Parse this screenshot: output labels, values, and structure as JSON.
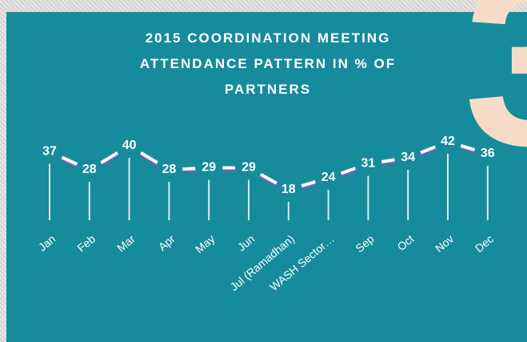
{
  "badge": "3",
  "chart_data": {
    "type": "line",
    "title": [
      "2015 COORDINATION MEETING",
      "ATTENDANCE PATTERN IN % OF",
      "PARTNERS"
    ],
    "categories": [
      "Jan",
      "Feb",
      "Mar",
      "Apr",
      "May",
      "Jun",
      "Jul (Ramadhan)",
      "WASH Sector…",
      "Sep",
      "Oct",
      "Nov",
      "Dec"
    ],
    "values": [
      37,
      28,
      40,
      28,
      29,
      29,
      18,
      24,
      31,
      34,
      42,
      36
    ],
    "color": "#ffffff",
    "ylim": [
      0,
      50
    ]
  }
}
